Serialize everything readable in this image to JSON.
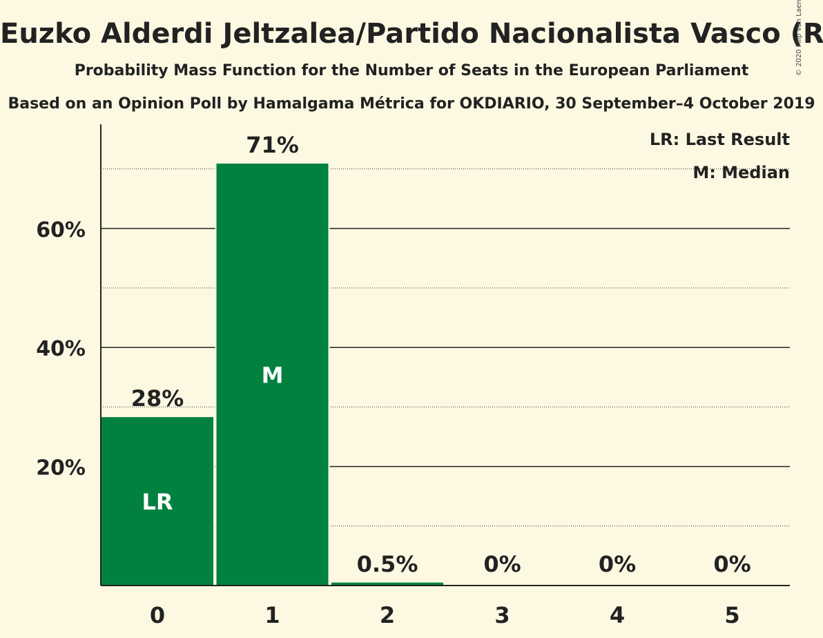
{
  "title": "Euzko Alderdi Jeltzalea/Partido Nacionalista Vasco (RE)",
  "subtitle": "Probability Mass Function for the Number of Seats in the European Parliament",
  "source": "Based on an Opinion Poll by Hamalgama Métrica for OKDIARIO, 30 September–4 October 2019",
  "copyright": "© 2020 Filip van Laenen",
  "legend": {
    "last_result": "LR: Last Result",
    "median": "M: Median"
  },
  "colors": {
    "bar": "#008140",
    "background": "#fdf8e2",
    "text": "#222222"
  },
  "chart_data": {
    "type": "bar",
    "categories": [
      "0",
      "1",
      "2",
      "3",
      "4",
      "5"
    ],
    "values": [
      28.3,
      70.9,
      0.5,
      0,
      0,
      0
    ],
    "value_labels": [
      "28%",
      "71%",
      "0.5%",
      "0%",
      "0%",
      "0%"
    ],
    "bar_markers": [
      "LR",
      "M",
      "",
      "",
      "",
      ""
    ],
    "xlabel": "",
    "ylabel": "",
    "ylim": [
      0,
      77.5
    ],
    "major_ticks": [
      20,
      40,
      60
    ],
    "tick_labels": [
      "20%",
      "40%",
      "60%"
    ],
    "minor_gridlines": [
      10,
      30,
      50,
      70
    ],
    "legend_position": "top-right"
  }
}
